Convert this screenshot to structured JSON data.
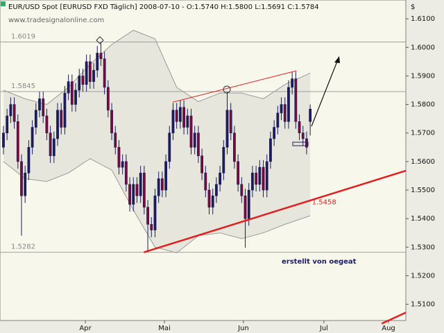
{
  "chart_data": {
    "type": "candlestick",
    "title": "EUR/USD Spot [EURUSD FXD  Täglich] 2008-07-10 - O:1.5740 H:1.5800 L:1.5691 C:1.5784",
    "subtitle": "www.tradesignalonline.com",
    "y_axis_label": "$",
    "annotation": "erstellt von oegeat",
    "up_color": "#1c1c5a",
    "down_color": "#7a0a38",
    "open": [
      1.565,
      1.57,
      1.576,
      1.58,
      1.574,
      1.56,
      1.548,
      1.556,
      1.565,
      1.572,
      1.578,
      1.582,
      1.576,
      1.57,
      1.562,
      1.568,
      1.578,
      1.572,
      1.584,
      1.588,
      1.58,
      1.585,
      1.59,
      1.587,
      1.595,
      1.588,
      1.592,
      1.598,
      1.596,
      1.586,
      1.578,
      1.57,
      1.565,
      1.558,
      1.56,
      1.552,
      1.545,
      1.552,
      1.548,
      1.556,
      1.544,
      1.538,
      1.536,
      1.548,
      1.554,
      1.55,
      1.56,
      1.57,
      1.578,
      1.574,
      1.579,
      1.572,
      1.576,
      1.565,
      1.57,
      1.562,
      1.556,
      1.55,
      1.544,
      1.548,
      1.552,
      1.556,
      1.565,
      1.578,
      1.57,
      1.56,
      1.552,
      1.548,
      1.54,
      1.55,
      1.556,
      1.552,
      1.558,
      1.55,
      1.56,
      1.568,
      1.572,
      1.577,
      1.58,
      1.574,
      1.586,
      1.589,
      1.574,
      1.57,
      1.568,
      1.574
    ],
    "high": [
      1.5725,
      1.5785,
      1.5825,
      1.5825,
      1.5765,
      1.5625,
      1.5585,
      1.5675,
      1.5745,
      1.5805,
      1.5845,
      1.5845,
      1.5785,
      1.5725,
      1.5705,
      1.5805,
      1.5805,
      1.5865,
      1.5905,
      1.5905,
      1.5875,
      1.5925,
      1.5925,
      1.5975,
      1.5975,
      1.5945,
      1.6005,
      1.6019,
      1.5985,
      1.5885,
      1.5805,
      1.5725,
      1.5675,
      1.5625,
      1.5625,
      1.5545,
      1.5545,
      1.5545,
      1.5585,
      1.5585,
      1.5465,
      1.5405,
      1.5505,
      1.5565,
      1.5565,
      1.5625,
      1.5725,
      1.5805,
      1.5805,
      1.5815,
      1.5815,
      1.5785,
      1.5785,
      1.5725,
      1.5725,
      1.5645,
      1.5585,
      1.5525,
      1.5505,
      1.5545,
      1.5585,
      1.5675,
      1.5845,
      1.5805,
      1.5725,
      1.5625,
      1.5545,
      1.5505,
      1.5525,
      1.5585,
      1.5585,
      1.5605,
      1.5605,
      1.5625,
      1.5705,
      1.5745,
      1.5795,
      1.5825,
      1.5825,
      1.5885,
      1.5915,
      1.5915,
      1.5765,
      1.5725,
      1.5705,
      1.58
    ],
    "low": [
      1.5625,
      1.5675,
      1.5735,
      1.5715,
      1.5575,
      1.534,
      1.5455,
      1.5535,
      1.5625,
      1.5695,
      1.5755,
      1.5735,
      1.5675,
      1.5595,
      1.5595,
      1.5655,
      1.5695,
      1.5695,
      1.5815,
      1.5775,
      1.5775,
      1.5825,
      1.5845,
      1.5845,
      1.5855,
      1.5855,
      1.5895,
      1.5935,
      1.5835,
      1.5755,
      1.5675,
      1.5625,
      1.5555,
      1.5555,
      1.5495,
      1.5425,
      1.5425,
      1.5455,
      1.5455,
      1.5415,
      1.5282,
      1.5335,
      1.5335,
      1.5455,
      1.5475,
      1.5475,
      1.5575,
      1.5675,
      1.5715,
      1.5715,
      1.5695,
      1.5695,
      1.5625,
      1.5625,
      1.5595,
      1.5535,
      1.5475,
      1.5415,
      1.5415,
      1.5455,
      1.5495,
      1.5535,
      1.5625,
      1.5675,
      1.5575,
      1.5495,
      1.5455,
      1.5298,
      1.5375,
      1.5475,
      1.5495,
      1.5495,
      1.5475,
      1.5475,
      1.5575,
      1.5655,
      1.5695,
      1.5745,
      1.5715,
      1.5715,
      1.5835,
      1.5715,
      1.5675,
      1.5655,
      1.5625,
      1.5691
    ],
    "close": [
      1.57,
      1.576,
      1.58,
      1.574,
      1.56,
      1.548,
      1.556,
      1.565,
      1.572,
      1.578,
      1.582,
      1.576,
      1.57,
      1.562,
      1.568,
      1.578,
      1.572,
      1.584,
      1.588,
      1.58,
      1.585,
      1.59,
      1.587,
      1.595,
      1.588,
      1.592,
      1.598,
      1.596,
      1.586,
      1.578,
      1.57,
      1.565,
      1.558,
      1.56,
      1.552,
      1.545,
      1.552,
      1.548,
      1.556,
      1.544,
      1.538,
      1.536,
      1.548,
      1.554,
      1.55,
      1.56,
      1.57,
      1.578,
      1.574,
      1.579,
      1.572,
      1.576,
      1.565,
      1.57,
      1.562,
      1.556,
      1.55,
      1.544,
      1.548,
      1.552,
      1.556,
      1.565,
      1.578,
      1.57,
      1.56,
      1.552,
      1.548,
      1.54,
      1.55,
      1.556,
      1.552,
      1.558,
      1.55,
      1.56,
      1.568,
      1.572,
      1.577,
      1.58,
      1.574,
      1.586,
      1.589,
      1.574,
      1.57,
      1.568,
      1.565,
      1.5784
    ],
    "band": {
      "color": "#9a9a9a",
      "x": [
        0,
        6,
        12,
        18,
        24,
        30,
        36,
        42,
        48,
        54,
        60,
        66,
        72,
        78,
        85
      ],
      "upper": [
        1.585,
        1.582,
        1.58,
        1.586,
        1.594,
        1.601,
        1.606,
        1.603,
        1.586,
        1.581,
        1.584,
        1.584,
        1.582,
        1.587,
        1.591
      ],
      "lower": [
        1.56,
        1.554,
        1.553,
        1.556,
        1.561,
        1.557,
        1.543,
        1.53,
        1.528,
        1.534,
        1.535,
        1.533,
        1.535,
        1.538,
        1.541
      ]
    },
    "levels": [
      1.6019,
      1.5845,
      1.5282
    ],
    "trendlines": [
      {
        "color": "#e02020",
        "width": 1,
        "points": [
          [
            46.9,
            1.5808
          ],
          [
            81.2,
            1.5918
          ]
        ]
      },
      {
        "color": "#e02020",
        "width": 2.5,
        "points": [
          [
            38.9,
            1.5282
          ],
          [
            111.5,
            1.5568
          ]
        ],
        "label": "1.5458",
        "label_at": [
          85.5,
          1.5458
        ]
      },
      {
        "color": "#e02020",
        "width": 2.5,
        "points": [
          [
            104.8,
            1.5032
          ],
          [
            111.5,
            1.5071
          ]
        ]
      }
    ],
    "xlim": [
      -0.96,
      111.5
    ],
    "ylim": [
      1.5043,
      1.6166
    ],
    "xticks": [
      {
        "value": 22.7,
        "label": "Apr"
      },
      {
        "value": 44.6,
        "label": "Mai"
      },
      {
        "value": 66.5,
        "label": "Jun"
      },
      {
        "value": 88.8,
        "label": "Jul"
      },
      {
        "value": 106.7,
        "label": "Aug"
      }
    ],
    "yticks": [
      {
        "value": 1.51,
        "label": "1.5100"
      },
      {
        "value": 1.52,
        "label": "1.5200"
      },
      {
        "value": 1.53,
        "label": "1.5300"
      },
      {
        "value": 1.54,
        "label": "1.5400"
      },
      {
        "value": 1.55,
        "label": "1.5500"
      },
      {
        "value": 1.56,
        "label": "1.5600"
      },
      {
        "value": 1.57,
        "label": "1.5700"
      },
      {
        "value": 1.58,
        "label": "1.5800"
      },
      {
        "value": 1.59,
        "label": "1.5900"
      },
      {
        "value": 1.6,
        "label": "1.6000"
      },
      {
        "value": 1.61,
        "label": "1.6100"
      }
    ]
  }
}
